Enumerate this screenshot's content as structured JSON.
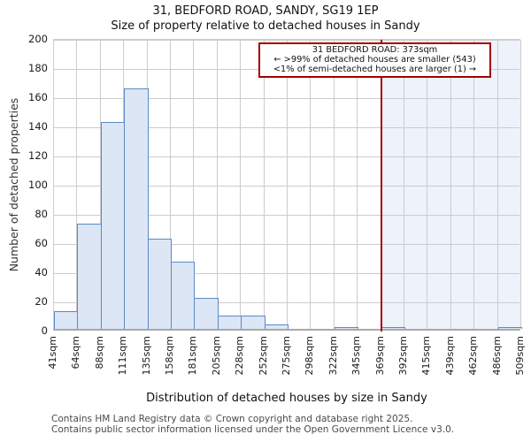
{
  "title": "31, BEDFORD ROAD, SANDY, SG19 1EP",
  "subtitle": "Size of property relative to detached houses in Sandy",
  "annotation_box": {
    "line1": "31 BEDFORD ROAD: 373sqm",
    "line2": "← >99% of detached houses are smaller (543)",
    "line3": "<1% of semi-detached houses are larger (1) →"
  },
  "chart_data": {
    "type": "bar",
    "title": "31, BEDFORD ROAD, SANDY, SG19 1EP — Size of property relative to detached houses in Sandy",
    "xlabel": "Distribution of detached houses by size in Sandy",
    "ylabel": "Number of detached properties",
    "bin_edge_labels": [
      "41sqm",
      "64sqm",
      "88sqm",
      "111sqm",
      "135sqm",
      "158sqm",
      "181sqm",
      "205sqm",
      "228sqm",
      "252sqm",
      "275sqm",
      "298sqm",
      "322sqm",
      "345sqm",
      "369sqm",
      "392sqm",
      "415sqm",
      "439sqm",
      "462sqm",
      "486sqm",
      "509sqm"
    ],
    "values": [
      12,
      72,
      142,
      165,
      62,
      46,
      21,
      9,
      9,
      3,
      0,
      0,
      1,
      0,
      1,
      0,
      0,
      0,
      0,
      1
    ],
    "ylim": [
      0,
      200
    ],
    "ytick_step": 20,
    "grid": true,
    "legend_position": "top-right",
    "marker_value_label": "373sqm"
  },
  "footer": {
    "line1": "Contains HM Land Registry data © Crown copyright and database right 2025.",
    "line2": "Contains public sector information licensed under the Open Government Licence v3.0."
  },
  "colors": {
    "bar_fill": "#dce6f5",
    "bar_edge": "#5b8ac6",
    "marker_line": "#a40000",
    "annotation_border": "#a40000",
    "shade": "#eef2fb",
    "gridline": "#cccccc",
    "footer_text": "#4a4a4a"
  }
}
